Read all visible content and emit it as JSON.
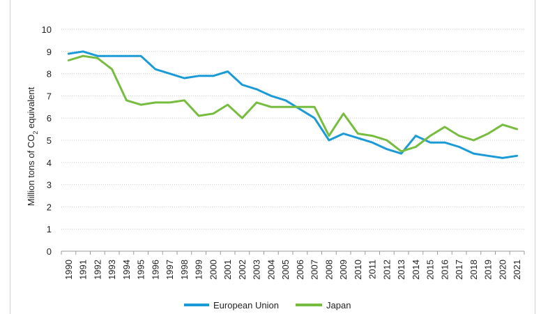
{
  "chart_data": {
    "type": "line",
    "title": "",
    "xlabel": "",
    "ylabel_main": "Million tons of CO",
    "ylabel_sub": "2",
    "ylabel_tail": " equivalent",
    "ylim": [
      0,
      10
    ],
    "yticks": [
      0,
      1,
      2,
      3,
      4,
      5,
      6,
      7,
      8,
      9,
      10
    ],
    "grid": "horizontal dotted",
    "legend_position": "bottom-center",
    "x": [
      "1990",
      "1991",
      "1992",
      "1993",
      "1994",
      "1995",
      "1996",
      "1997",
      "1998",
      "1999",
      "2000",
      "2001",
      "2002",
      "2003",
      "2004",
      "2005",
      "2006",
      "2007",
      "2008",
      "2009",
      "2010",
      "2011",
      "2012",
      "2013",
      "2014",
      "2015",
      "2016",
      "2017",
      "2018",
      "2019",
      "2020",
      "2021"
    ],
    "series": [
      {
        "name": "European Union",
        "color": "#1a9ad6",
        "values": [
          8.9,
          9.0,
          8.8,
          8.8,
          8.8,
          8.8,
          8.2,
          8.0,
          7.8,
          7.9,
          7.9,
          8.1,
          7.5,
          7.3,
          7.0,
          6.8,
          6.4,
          6.0,
          5.0,
          5.3,
          5.1,
          4.9,
          4.6,
          4.4,
          5.2,
          4.9,
          4.9,
          4.7,
          4.4,
          4.3,
          4.2,
          4.3
        ]
      },
      {
        "name": "Japan",
        "color": "#76bd3f",
        "values": [
          8.6,
          8.8,
          8.7,
          8.2,
          6.8,
          6.6,
          6.7,
          6.7,
          6.8,
          6.1,
          6.2,
          6.6,
          6.0,
          6.7,
          6.5,
          6.5,
          6.5,
          6.5,
          5.2,
          6.2,
          5.3,
          5.2,
          5.0,
          4.5,
          4.7,
          5.2,
          5.6,
          5.2,
          5.0,
          5.3,
          5.7,
          5.5
        ]
      }
    ]
  }
}
